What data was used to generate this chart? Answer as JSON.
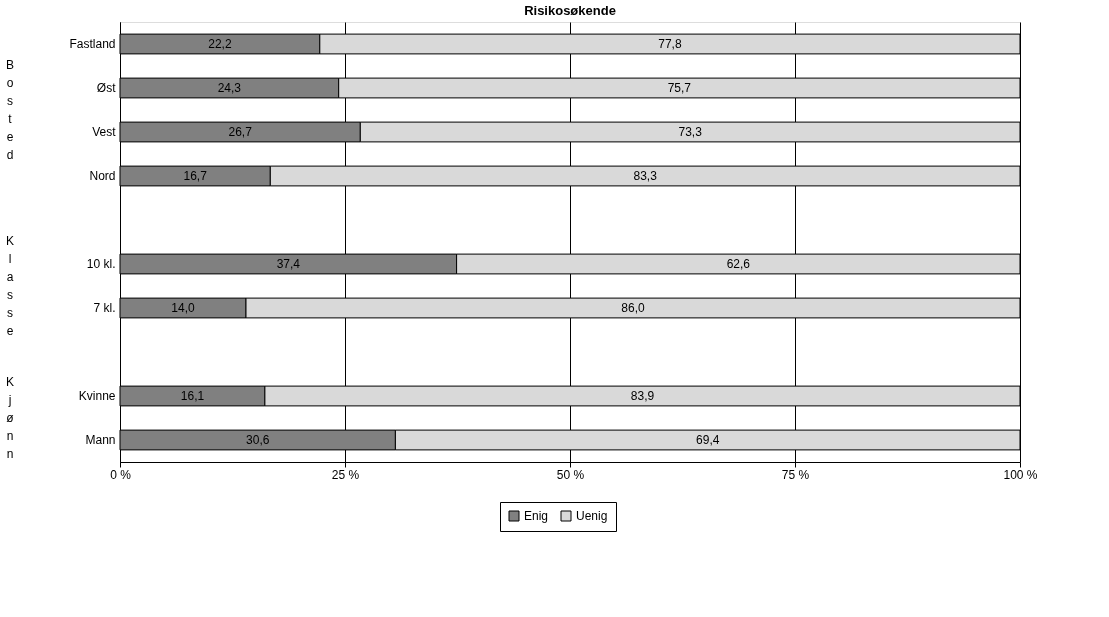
{
  "chart_data": {
    "type": "bar",
    "orientation": "horizontal",
    "stacked": true,
    "title": "Risikosøkende",
    "categories": [
      "Fastland",
      "Øst",
      "Vest",
      "Nord",
      null,
      "10 kl.",
      "7 kl.",
      null,
      "Kvinne",
      "Mann"
    ],
    "series": [
      {
        "name": "Enig",
        "color": "#808080",
        "values": [
          22.2,
          24.3,
          26.7,
          16.7,
          null,
          37.4,
          14.0,
          null,
          16.1,
          30.6
        ],
        "value_labels": [
          "22,2",
          "24,3",
          "26,7",
          "16,7",
          null,
          "37,4",
          "14,0",
          null,
          "16,1",
          "30,6"
        ]
      },
      {
        "name": "Uenig",
        "color": "#d9d9d9",
        "values": [
          77.8,
          75.7,
          73.3,
          83.3,
          null,
          62.6,
          86.0,
          null,
          83.9,
          69.4
        ],
        "value_labels": [
          "77,8",
          "75,7",
          "73,3",
          "83,3",
          null,
          "62,6",
          "86,0",
          null,
          "83,9",
          "69,4"
        ]
      }
    ],
    "xlim": [
      0,
      100
    ],
    "xticks": [
      {
        "value": 0,
        "label": "0 %"
      },
      {
        "value": 25,
        "label": "25 %"
      },
      {
        "value": 50,
        "label": "50 %"
      },
      {
        "value": 75,
        "label": "75 %"
      },
      {
        "value": 100,
        "label": "100 %"
      }
    ],
    "annotations": [
      "Bosted",
      "Klasse",
      "Kjønn"
    ],
    "grid": "x",
    "legend": "bottom"
  }
}
